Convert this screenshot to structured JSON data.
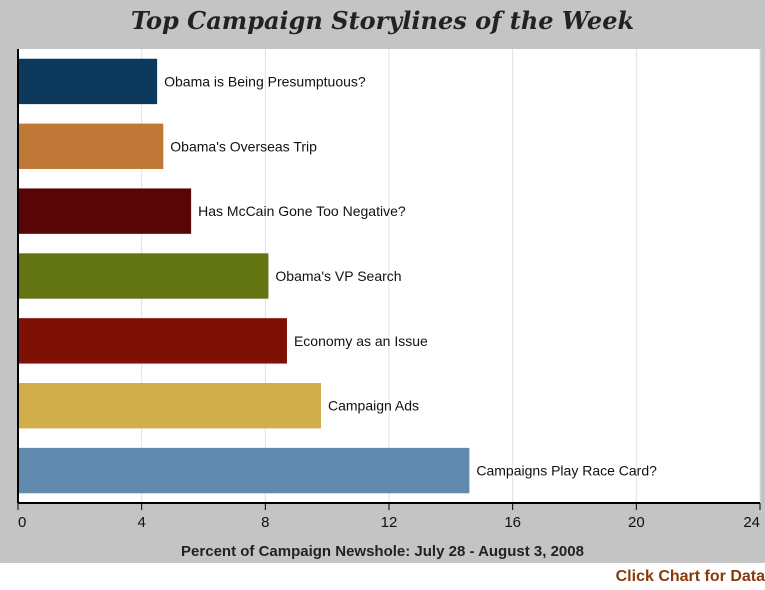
{
  "chart_data": {
    "type": "bar",
    "orientation": "horizontal",
    "title": "Top Campaign Storylines of the Week",
    "xlabel": "Percent of Campaign Newshole: July 28 - August 3, 2008",
    "ylabel": "",
    "xlim": [
      0,
      24
    ],
    "ticks": [
      0,
      4,
      8,
      12,
      16,
      20,
      24
    ],
    "grid": true,
    "categories": [
      "Obama is Being Presumptuous?",
      "Obama's Overseas Trip",
      "Has McCain Gone Too Negative?",
      "Obama's VP Search",
      "Economy as an Issue",
      "Campaign Ads",
      "Campaigns Play Race Card?"
    ],
    "values": [
      4.5,
      4.7,
      5.6,
      8.1,
      8.7,
      9.8,
      14.6
    ],
    "colors": [
      "#0d3a5c",
      "#c07838",
      "#5a0505",
      "#637413",
      "#7e1006",
      "#d2ad4c",
      "#6289ae"
    ]
  },
  "footer": {
    "link_text": "Click Chart for Data"
  }
}
